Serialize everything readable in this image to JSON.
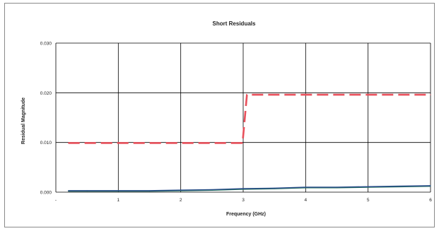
{
  "chart_data": {
    "type": "line",
    "title": "Short Residuals",
    "xlabel": "Frequency (GHz)",
    "ylabel": "Residual Magnitude",
    "xlim": [
      0,
      6
    ],
    "ylim": [
      0,
      0.03
    ],
    "x_ticks": [
      0,
      1,
      2,
      3,
      4,
      5,
      6
    ],
    "x_tick_labels": [
      "-",
      "1",
      "2",
      "3",
      "4",
      "5",
      "6"
    ],
    "y_ticks": [
      0,
      0.01,
      0.02,
      0.03
    ],
    "y_tick_labels": [
      "0.000",
      "0.010",
      "0.020",
      "0.030"
    ],
    "grid": true,
    "legend": "none",
    "colors": {
      "limit": "#e8505b",
      "measured_a": "#1f6f55",
      "measured_b": "#2a4f8a",
      "grid": "#000000"
    },
    "series": [
      {
        "style": "dashed",
        "color": "#e8505b",
        "x": [
          0.2,
          2.99,
          2.99,
          3.06,
          6.0
        ],
        "y": [
          0.0099,
          0.0099,
          0.0099,
          0.0196,
          0.0196
        ]
      },
      {
        "style": "solid",
        "color": "#1f6f55",
        "x": [
          0.2,
          0.5,
          1.0,
          1.5,
          2.0,
          2.5,
          3.0,
          3.5,
          4.0,
          4.5,
          5.0,
          5.5,
          6.0
        ],
        "y": [
          0.0002,
          0.0002,
          0.0002,
          0.0002,
          0.0003,
          0.0004,
          0.0006,
          0.0007,
          0.0009,
          0.0009,
          0.001,
          0.0011,
          0.0012
        ]
      },
      {
        "style": "solid",
        "color": "#2a4f8a",
        "x": [
          0.2,
          0.5,
          1.0,
          1.5,
          2.0,
          2.5,
          3.0,
          3.5,
          4.0,
          4.5,
          5.0,
          5.5,
          6.0
        ],
        "y": [
          0.0003,
          0.0003,
          0.0003,
          0.0003,
          0.0004,
          0.0005,
          0.0007,
          0.0008,
          0.001,
          0.001,
          0.0011,
          0.0012,
          0.0013
        ]
      }
    ]
  }
}
